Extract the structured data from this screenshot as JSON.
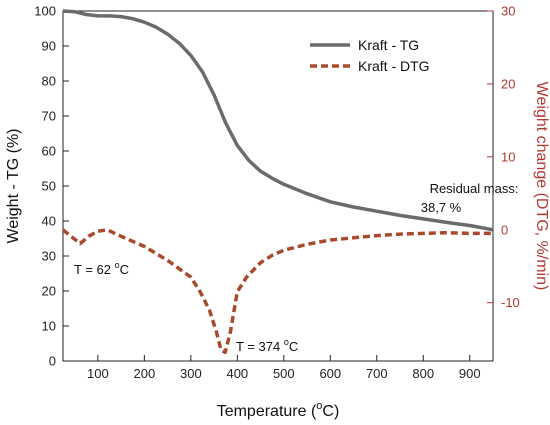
{
  "chart_data": {
    "type": "line",
    "xlabel": "Temperature (°C)",
    "xlabel_parts": {
      "main": "Temperature (",
      "sup": "o",
      "unit": "C)"
    },
    "ylabel_left": "Weight - TG (%)",
    "ylabel_right": "Weight change (DTG, %/min)",
    "xlim": [
      25,
      950
    ],
    "ylim_left": [
      0,
      100
    ],
    "ylim_right": [
      -18,
      30
    ],
    "x_ticks": [
      100,
      200,
      300,
      400,
      500,
      600,
      700,
      800,
      900
    ],
    "y_left_ticks": [
      0,
      10,
      20,
      30,
      40,
      50,
      60,
      70,
      80,
      90,
      100
    ],
    "y_right_ticks": [
      -10,
      0,
      10,
      20,
      30
    ],
    "grid": false,
    "legend_position": "top-right",
    "series": [
      {
        "name": "Kraft - TG",
        "axis": "left",
        "color": "#6b6b6b",
        "style": "solid",
        "x": [
          25,
          50,
          75,
          100,
          125,
          150,
          175,
          200,
          225,
          250,
          275,
          300,
          325,
          350,
          375,
          400,
          425,
          450,
          475,
          500,
          550,
          600,
          650,
          700,
          750,
          800,
          850,
          900,
          950
        ],
        "y": [
          100,
          99.8,
          99,
          98.6,
          98.6,
          98.4,
          97.8,
          96.8,
          95.4,
          93.4,
          90.8,
          87.3,
          82.6,
          76,
          68,
          61.6,
          57.3,
          54.2,
          52.2,
          50.5,
          47.8,
          45.5,
          44,
          42.8,
          41.6,
          40.6,
          39.6,
          38.7,
          37.5
        ]
      },
      {
        "name": "Kraft - DTG",
        "axis": "right",
        "color": "#a94a2f",
        "style": "dashed",
        "x": [
          25,
          40,
          62,
          80,
          100,
          120,
          150,
          200,
          250,
          300,
          320,
          340,
          355,
          365,
          374,
          385,
          400,
          420,
          450,
          475,
          500,
          550,
          600,
          650,
          700,
          750,
          800,
          850,
          900,
          950
        ],
        "y": [
          0,
          -0.8,
          -1.9,
          -0.9,
          -0.2,
          0,
          -0.9,
          -2.3,
          -4.2,
          -6.5,
          -8.5,
          -11,
          -14,
          -16.5,
          -16.8,
          -14,
          -8.5,
          -6.5,
          -4.5,
          -3.5,
          -2.8,
          -2,
          -1.4,
          -1.1,
          -0.8,
          -0.6,
          -0.5,
          -0.4,
          -0.5,
          -0.5
        ]
      }
    ],
    "annotations": [
      {
        "id": "t62",
        "text": "T = 62 °C",
        "parts": {
          "pre": "T = 62 ",
          "sup": "o",
          "post": "C"
        }
      },
      {
        "id": "t374",
        "text": "T = 374 °C",
        "parts": {
          "pre": "T = 374 ",
          "sup": "o",
          "post": "C"
        }
      },
      {
        "id": "residual",
        "lines": [
          "Residual mass:",
          "38,7 %"
        ]
      }
    ]
  }
}
